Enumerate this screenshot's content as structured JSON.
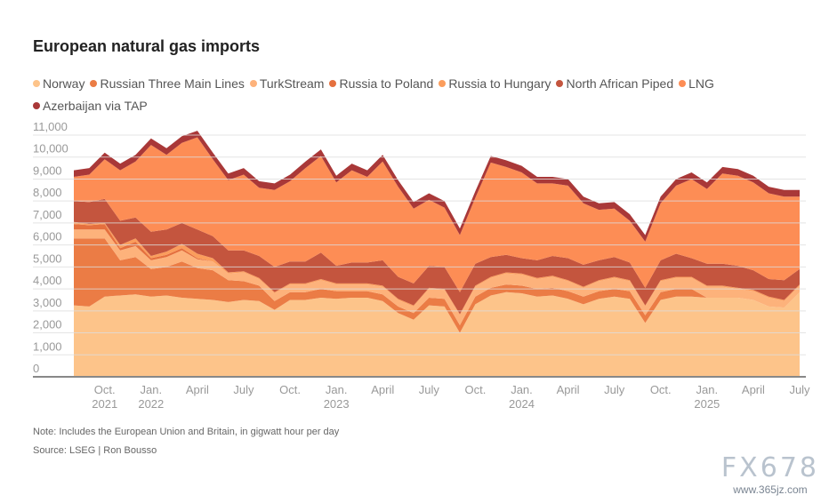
{
  "title": "European natural gas imports",
  "note": "Note: Includes the European Union and Britain, in gigwatt hour per day",
  "source": "Source: LSEG | Ron Bousso",
  "watermark": {
    "brand": "FX678",
    "site": "www.365jz.com"
  },
  "chart_data": {
    "type": "area",
    "stacked": true,
    "title": "European natural gas imports",
    "ylim": [
      0,
      11000
    ],
    "yticks": [
      "0",
      "1,000",
      "2,000",
      "3,000",
      "4,000",
      "5,000",
      "6,000",
      "7,000",
      "8,000",
      "9,000",
      "10,000",
      "11,000"
    ],
    "x_start": "2021-08",
    "x_end": "2025-07",
    "frequency": "monthly",
    "xticks": [
      {
        "month": "2021-10",
        "label": "Oct.",
        "year": "2021"
      },
      {
        "month": "2022-01",
        "label": "Jan.",
        "year": "2022"
      },
      {
        "month": "2022-04",
        "label": "April",
        "year": ""
      },
      {
        "month": "2022-07",
        "label": "July",
        "year": ""
      },
      {
        "month": "2022-10",
        "label": "Oct.",
        "year": ""
      },
      {
        "month": "2023-01",
        "label": "Jan.",
        "year": "2023"
      },
      {
        "month": "2023-04",
        "label": "April",
        "year": ""
      },
      {
        "month": "2023-07",
        "label": "July",
        "year": ""
      },
      {
        "month": "2023-10",
        "label": "Oct.",
        "year": ""
      },
      {
        "month": "2024-01",
        "label": "Jan.",
        "year": "2024"
      },
      {
        "month": "2024-04",
        "label": "April",
        "year": ""
      },
      {
        "month": "2024-07",
        "label": "July",
        "year": ""
      },
      {
        "month": "2024-10",
        "label": "Oct.",
        "year": ""
      },
      {
        "month": "2025-01",
        "label": "Jan.",
        "year": "2025"
      },
      {
        "month": "2025-04",
        "label": "April",
        "year": ""
      },
      {
        "month": "2025-07",
        "label": "July",
        "year": ""
      }
    ],
    "grid": true,
    "legend_position": "top",
    "series": [
      {
        "name": "Norway",
        "color": "#fdc48a",
        "values": [
          3250,
          3200,
          3650,
          3700,
          3750,
          3650,
          3700,
          3600,
          3550,
          3500,
          3400,
          3500,
          3450,
          3050,
          3500,
          3500,
          3600,
          3550,
          3600,
          3600,
          3450,
          2900,
          2600,
          3250,
          3200,
          2000,
          3300,
          3700,
          3850,
          3800,
          3650,
          3700,
          3550,
          3300,
          3550,
          3650,
          3550,
          2450,
          3500,
          3650,
          3650,
          3600,
          3600,
          3600,
          3500,
          3200,
          3150,
          3850
        ]
      },
      {
        "name": "Russian Three Main Lines",
        "color": "#eb7c45",
        "values": [
          3050,
          3100,
          2650,
          1600,
          1700,
          1250,
          1300,
          1650,
          1400,
          1350,
          1000,
          850,
          700,
          400,
          350,
          350,
          400,
          350,
          300,
          300,
          300,
          300,
          300,
          350,
          350,
          350,
          350,
          350,
          350,
          350,
          350,
          350,
          350,
          350,
          350,
          350,
          350,
          350,
          350,
          350,
          350,
          0,
          0,
          0,
          0,
          0,
          0,
          0
        ]
      },
      {
        "name": "TurkStream",
        "color": "#fdb27b",
        "values": [
          400,
          400,
          400,
          450,
          500,
          400,
          450,
          500,
          400,
          400,
          300,
          400,
          300,
          350,
          350,
          350,
          400,
          300,
          300,
          300,
          350,
          300,
          300,
          400,
          400,
          450,
          450,
          450,
          500,
          500,
          450,
          500,
          450,
          400,
          450,
          500,
          450,
          400,
          500,
          500,
          500,
          500,
          500,
          400,
          400,
          400,
          300,
          300
        ]
      },
      {
        "name": "Russia to Poland",
        "color": "#e5703e",
        "values": [
          250,
          200,
          250,
          100,
          200,
          100,
          100,
          100,
          50,
          0,
          0,
          0,
          0,
          0,
          0,
          0,
          0,
          0,
          0,
          0,
          0,
          0,
          0,
          0,
          0,
          0,
          0,
          0,
          0,
          0,
          0,
          0,
          0,
          0,
          0,
          0,
          0,
          0,
          0,
          0,
          0,
          0,
          0,
          0,
          0,
          0,
          0,
          0
        ]
      },
      {
        "name": "Russia to Hungary",
        "color": "#fb9d5c",
        "values": [
          100,
          50,
          50,
          150,
          150,
          100,
          150,
          200,
          200,
          150,
          50,
          50,
          50,
          50,
          50,
          50,
          50,
          50,
          50,
          50,
          50,
          50,
          50,
          50,
          50,
          50,
          50,
          50,
          50,
          50,
          50,
          50,
          50,
          50,
          50,
          50,
          50,
          50,
          50,
          50,
          50,
          50,
          50,
          50,
          50,
          50,
          50,
          50
        ]
      },
      {
        "name": "North African Piped",
        "color": "#c4553e",
        "values": [
          950,
          1000,
          1100,
          1100,
          950,
          1100,
          1000,
          950,
          1100,
          1000,
          1000,
          950,
          1000,
          1150,
          1000,
          1000,
          1200,
          800,
          950,
          950,
          1150,
          1000,
          1000,
          1000,
          1000,
          1000,
          1000,
          900,
          800,
          700,
          800,
          900,
          1000,
          1000,
          900,
          900,
          800,
          800,
          900,
          1050,
          850,
          1000,
          1000,
          1000,
          900,
          800,
          900,
          700
        ]
      },
      {
        "name": "LNG",
        "color": "#fd8d55",
        "values": [
          1100,
          1250,
          1800,
          2300,
          2550,
          3950,
          3400,
          3650,
          4200,
          3500,
          3200,
          3450,
          3100,
          3500,
          3650,
          4250,
          4400,
          3800,
          4200,
          3900,
          4500,
          4100,
          3400,
          3000,
          2700,
          2600,
          3000,
          4300,
          4000,
          3900,
          3500,
          3300,
          3300,
          2800,
          2300,
          2200,
          1900,
          2100,
          2600,
          3100,
          3600,
          3400,
          4100,
          4100,
          4000,
          3900,
          3800,
          3300
        ]
      },
      {
        "name": "Azerbaijan via TAP",
        "color": "#a93838",
        "values": [
          300,
          300,
          300,
          300,
          300,
          300,
          300,
          300,
          300,
          300,
          300,
          300,
          300,
          300,
          300,
          300,
          300,
          300,
          300,
          300,
          300,
          300,
          300,
          300,
          300,
          300,
          300,
          300,
          300,
          300,
          300,
          300,
          300,
          300,
          300,
          300,
          300,
          300,
          300,
          300,
          300,
          300,
          300,
          300,
          300,
          300,
          300,
          300
        ]
      }
    ]
  }
}
